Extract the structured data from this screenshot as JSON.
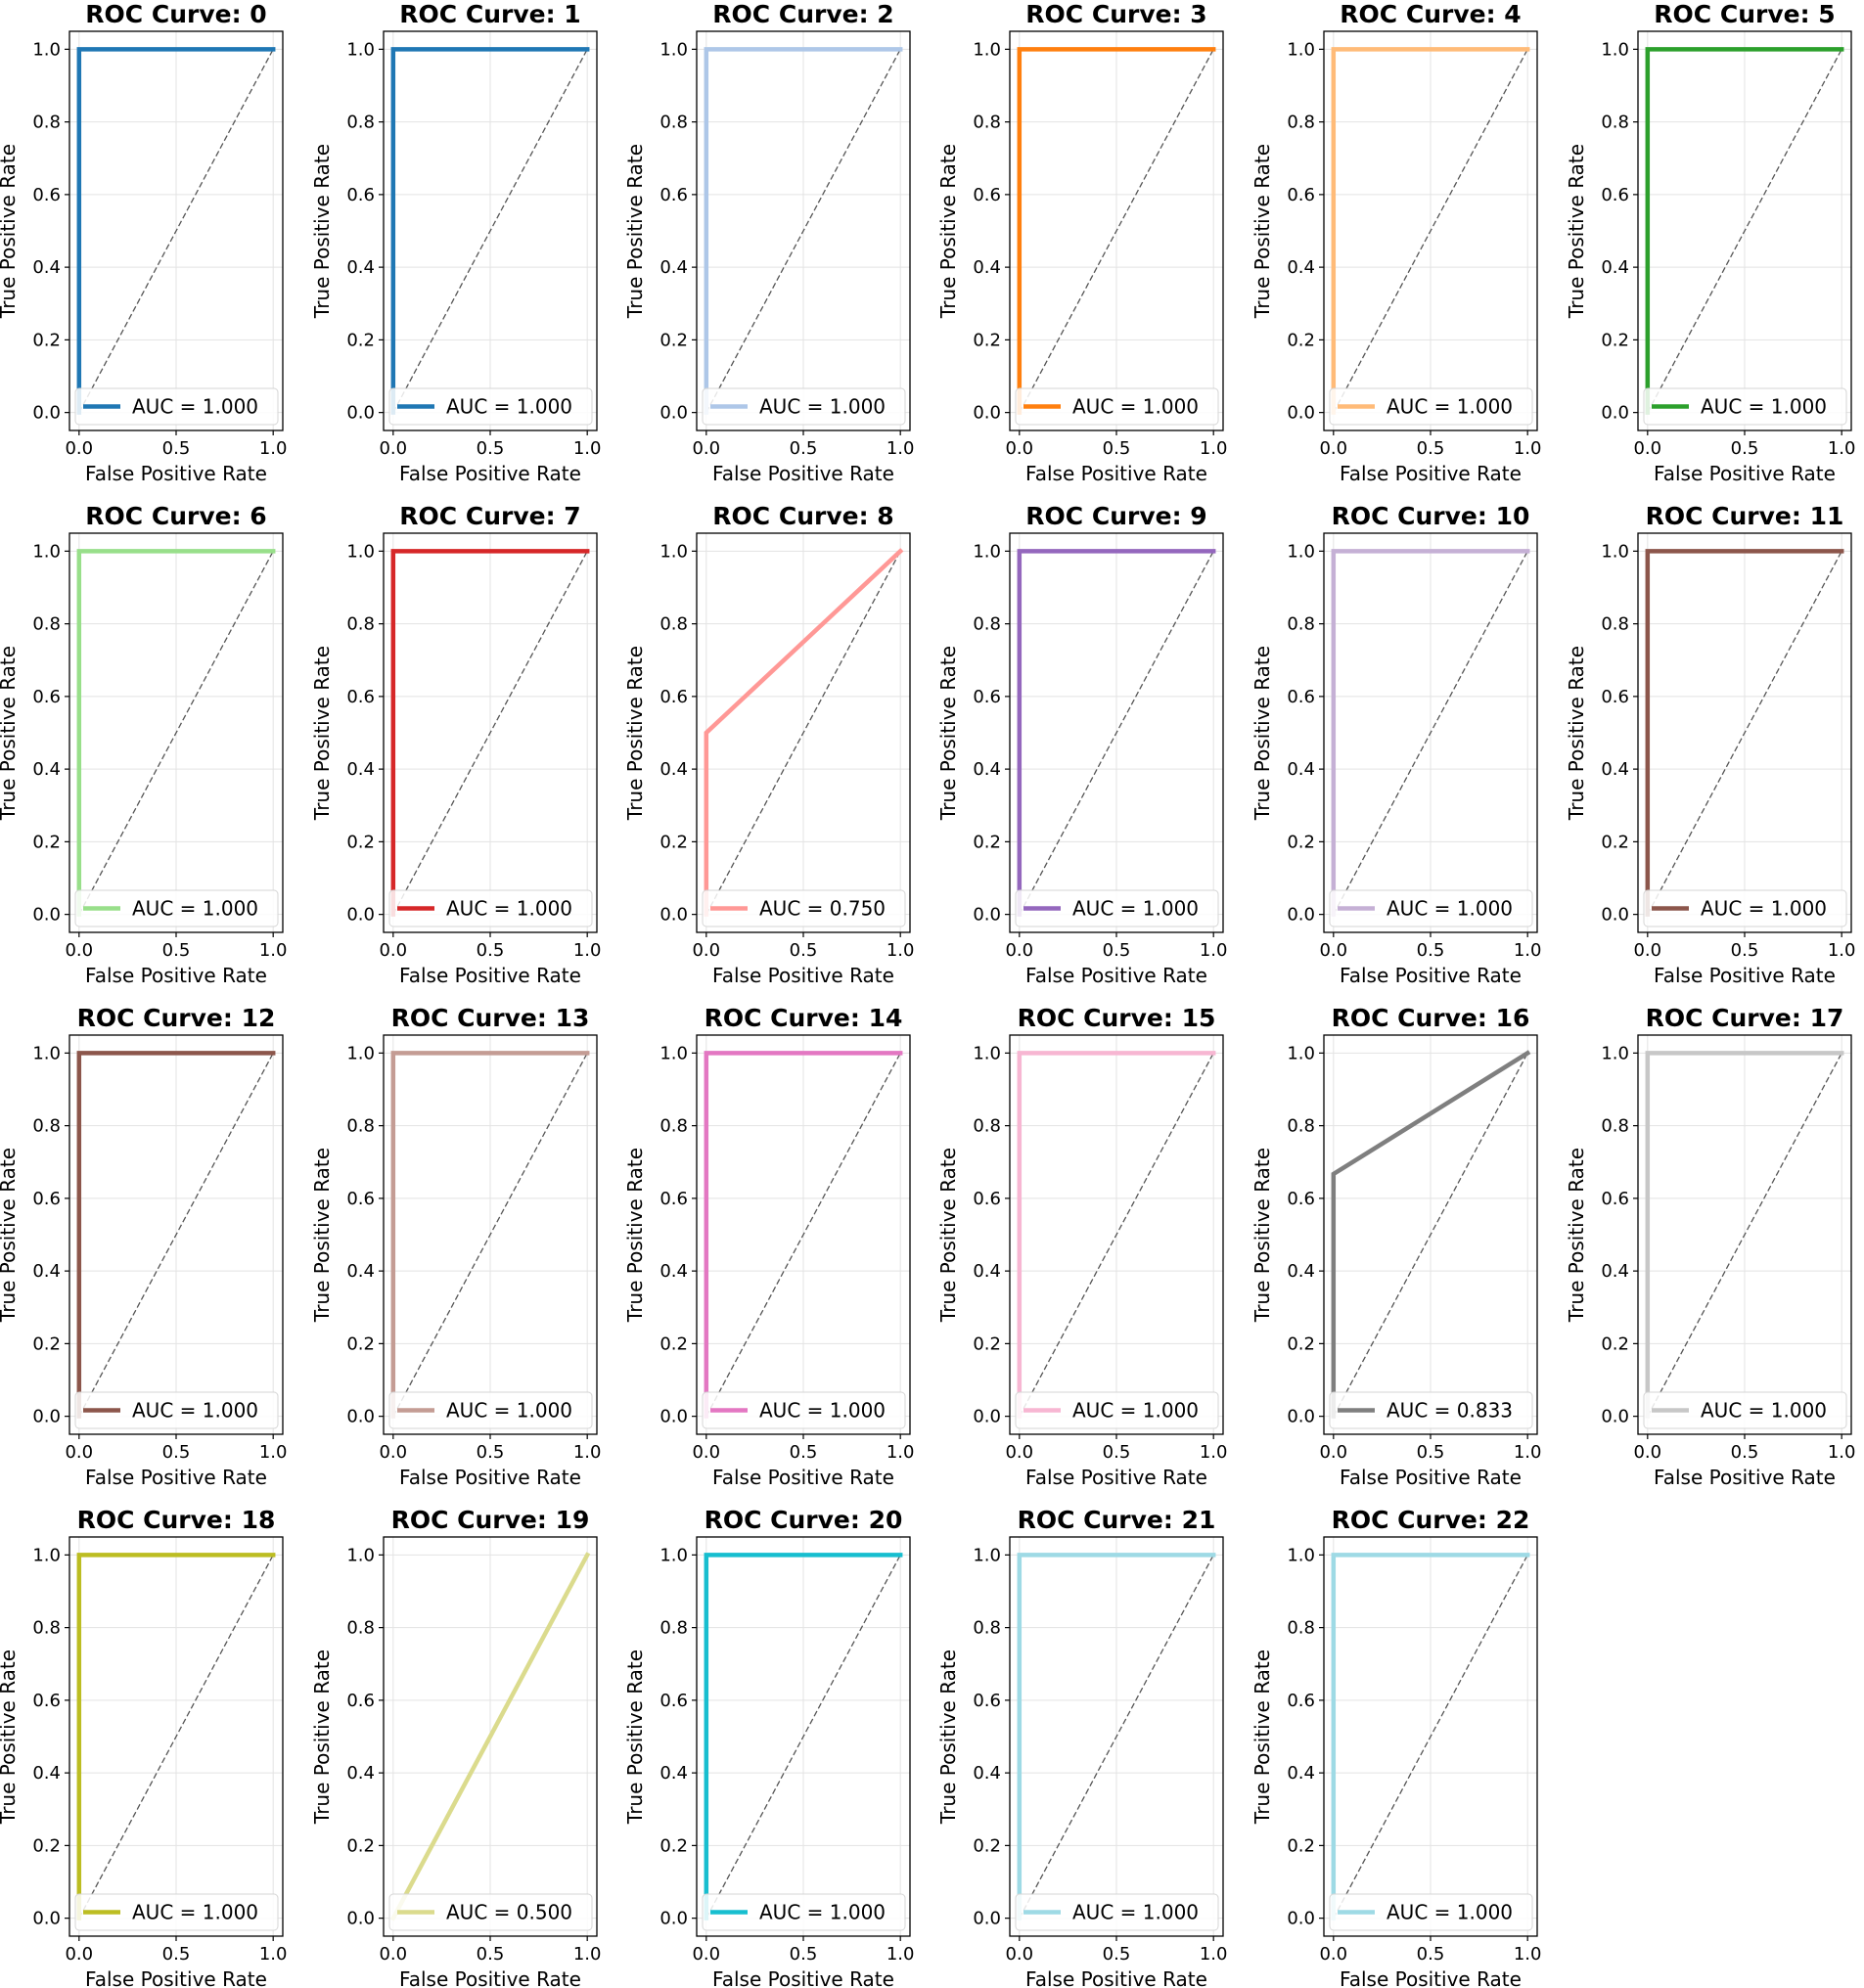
{
  "chart_data": {
    "type": "line",
    "figure_title": "",
    "xlabel": "False Positive Rate",
    "ylabel": "True Positive Rate",
    "xlim": [
      0,
      1
    ],
    "ylim": [
      0,
      1
    ],
    "xticks": [
      "0.0",
      "0.5",
      "1.0"
    ],
    "yticks": [
      "0.0",
      "0.2",
      "0.4",
      "0.6",
      "0.8",
      "1.0"
    ],
    "grid": true,
    "legend_location": "lower-right",
    "reference_line": {
      "style": "dashed",
      "color": "#555555",
      "x": [
        0,
        1
      ],
      "y": [
        0,
        1
      ]
    },
    "subplots": [
      {
        "title": "ROC Curve: 0",
        "color": "#1f77b4",
        "legend": "AUC = 1.000",
        "auc": 1.0,
        "fpr": [
          0,
          0,
          1
        ],
        "tpr": [
          0,
          1,
          1
        ]
      },
      {
        "title": "ROC Curve: 1",
        "color": "#1f77b4",
        "legend": "AUC = 1.000",
        "auc": 1.0,
        "fpr": [
          0,
          0,
          1
        ],
        "tpr": [
          0,
          1,
          1
        ]
      },
      {
        "title": "ROC Curve: 2",
        "color": "#aec7e8",
        "legend": "AUC = 1.000",
        "auc": 1.0,
        "fpr": [
          0,
          0,
          1
        ],
        "tpr": [
          0,
          1,
          1
        ]
      },
      {
        "title": "ROC Curve: 3",
        "color": "#ff7f0e",
        "legend": "AUC = 1.000",
        "auc": 1.0,
        "fpr": [
          0,
          0,
          1
        ],
        "tpr": [
          0,
          1,
          1
        ]
      },
      {
        "title": "ROC Curve: 4",
        "color": "#ffbb78",
        "legend": "AUC = 1.000",
        "auc": 1.0,
        "fpr": [
          0,
          0,
          1
        ],
        "tpr": [
          0,
          1,
          1
        ]
      },
      {
        "title": "ROC Curve: 5",
        "color": "#2ca02c",
        "legend": "AUC = 1.000",
        "auc": 1.0,
        "fpr": [
          0,
          0,
          1
        ],
        "tpr": [
          0,
          1,
          1
        ]
      },
      {
        "title": "ROC Curve: 6",
        "color": "#98df8a",
        "legend": "AUC = 1.000",
        "auc": 1.0,
        "fpr": [
          0,
          0,
          1
        ],
        "tpr": [
          0,
          1,
          1
        ]
      },
      {
        "title": "ROC Curve: 7",
        "color": "#d62728",
        "legend": "AUC = 1.000",
        "auc": 1.0,
        "fpr": [
          0,
          0,
          1
        ],
        "tpr": [
          0,
          1,
          1
        ]
      },
      {
        "title": "ROC Curve: 8",
        "color": "#ff9896",
        "legend": "AUC = 0.750",
        "auc": 0.75,
        "fpr": [
          0,
          0,
          1
        ],
        "tpr": [
          0,
          0.5,
          1
        ]
      },
      {
        "title": "ROC Curve: 9",
        "color": "#9467bd",
        "legend": "AUC = 1.000",
        "auc": 1.0,
        "fpr": [
          0,
          0,
          1
        ],
        "tpr": [
          0,
          1,
          1
        ]
      },
      {
        "title": "ROC Curve: 10",
        "color": "#c5b0d5",
        "legend": "AUC = 1.000",
        "auc": 1.0,
        "fpr": [
          0,
          0,
          1
        ],
        "tpr": [
          0,
          1,
          1
        ]
      },
      {
        "title": "ROC Curve: 11",
        "color": "#8c564b",
        "legend": "AUC = 1.000",
        "auc": 1.0,
        "fpr": [
          0,
          0,
          1
        ],
        "tpr": [
          0,
          1,
          1
        ]
      },
      {
        "title": "ROC Curve: 12",
        "color": "#8c564b",
        "legend": "AUC = 1.000",
        "auc": 1.0,
        "fpr": [
          0,
          0,
          1
        ],
        "tpr": [
          0,
          1,
          1
        ]
      },
      {
        "title": "ROC Curve: 13",
        "color": "#c49c94",
        "legend": "AUC = 1.000",
        "auc": 1.0,
        "fpr": [
          0,
          0,
          1
        ],
        "tpr": [
          0,
          1,
          1
        ]
      },
      {
        "title": "ROC Curve: 14",
        "color": "#e377c2",
        "legend": "AUC = 1.000",
        "auc": 1.0,
        "fpr": [
          0,
          0,
          1
        ],
        "tpr": [
          0,
          1,
          1
        ]
      },
      {
        "title": "ROC Curve: 15",
        "color": "#f7b6d2",
        "legend": "AUC = 1.000",
        "auc": 1.0,
        "fpr": [
          0,
          0,
          1
        ],
        "tpr": [
          0,
          1,
          1
        ]
      },
      {
        "title": "ROC Curve: 16",
        "color": "#7f7f7f",
        "legend": "AUC = 0.833",
        "auc": 0.833,
        "fpr": [
          0,
          0,
          1
        ],
        "tpr": [
          0,
          0.667,
          1
        ]
      },
      {
        "title": "ROC Curve: 17",
        "color": "#c7c7c7",
        "legend": "AUC = 1.000",
        "auc": 1.0,
        "fpr": [
          0,
          0,
          1
        ],
        "tpr": [
          0,
          1,
          1
        ]
      },
      {
        "title": "ROC Curve: 18",
        "color": "#bcbd22",
        "legend": "AUC = 1.000",
        "auc": 1.0,
        "fpr": [
          0,
          0,
          1
        ],
        "tpr": [
          0,
          1,
          1
        ]
      },
      {
        "title": "ROC Curve: 19",
        "color": "#dbdb8d",
        "legend": "AUC = 0.500",
        "auc": 0.5,
        "fpr": [
          0,
          1
        ],
        "tpr": [
          0,
          1
        ]
      },
      {
        "title": "ROC Curve: 20",
        "color": "#17becf",
        "legend": "AUC = 1.000",
        "auc": 1.0,
        "fpr": [
          0,
          0,
          1
        ],
        "tpr": [
          0,
          1,
          1
        ]
      },
      {
        "title": "ROC Curve: 21",
        "color": "#9edae5",
        "legend": "AUC = 1.000",
        "auc": 1.0,
        "fpr": [
          0,
          0,
          1
        ],
        "tpr": [
          0,
          1,
          1
        ]
      },
      {
        "title": "ROC Curve: 22",
        "color": "#9edae5",
        "legend": "AUC = 1.000",
        "auc": 1.0,
        "fpr": [
          0,
          0,
          1
        ],
        "tpr": [
          0,
          1,
          1
        ]
      }
    ]
  }
}
